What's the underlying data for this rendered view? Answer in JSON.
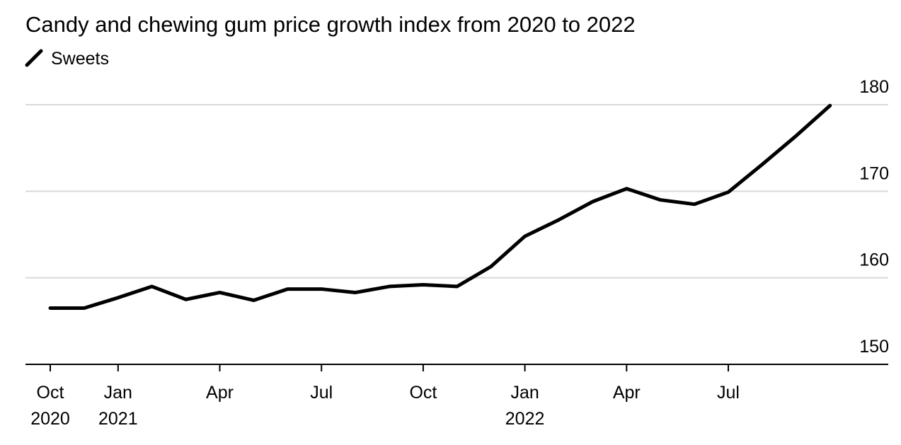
{
  "chart_data": {
    "type": "line",
    "title": "Candy and chewing gum price growth index from 2020 to 2022",
    "categories": [
      "Oct\n2020",
      null,
      "Jan\n2021",
      null,
      null,
      "Apr",
      null,
      null,
      "Jul",
      null,
      null,
      "Oct",
      null,
      null,
      "Jan\n2022",
      null,
      null,
      "Apr",
      null,
      null,
      "Jul",
      null,
      null,
      null
    ],
    "series": [
      {
        "name": "Sweets",
        "color": "#000000",
        "values": [
          156.5,
          156.5,
          157.7,
          159.0,
          157.5,
          158.3,
          157.4,
          158.7,
          158.7,
          158.3,
          159.0,
          159.2,
          159.0,
          161.3,
          164.8,
          166.7,
          168.8,
          170.3,
          169.0,
          168.5,
          169.9,
          173.1,
          176.4,
          179.9
        ]
      }
    ],
    "ylim": [
      150,
      180
    ],
    "yticks": [
      150,
      160,
      170,
      180
    ],
    "grid": true
  }
}
